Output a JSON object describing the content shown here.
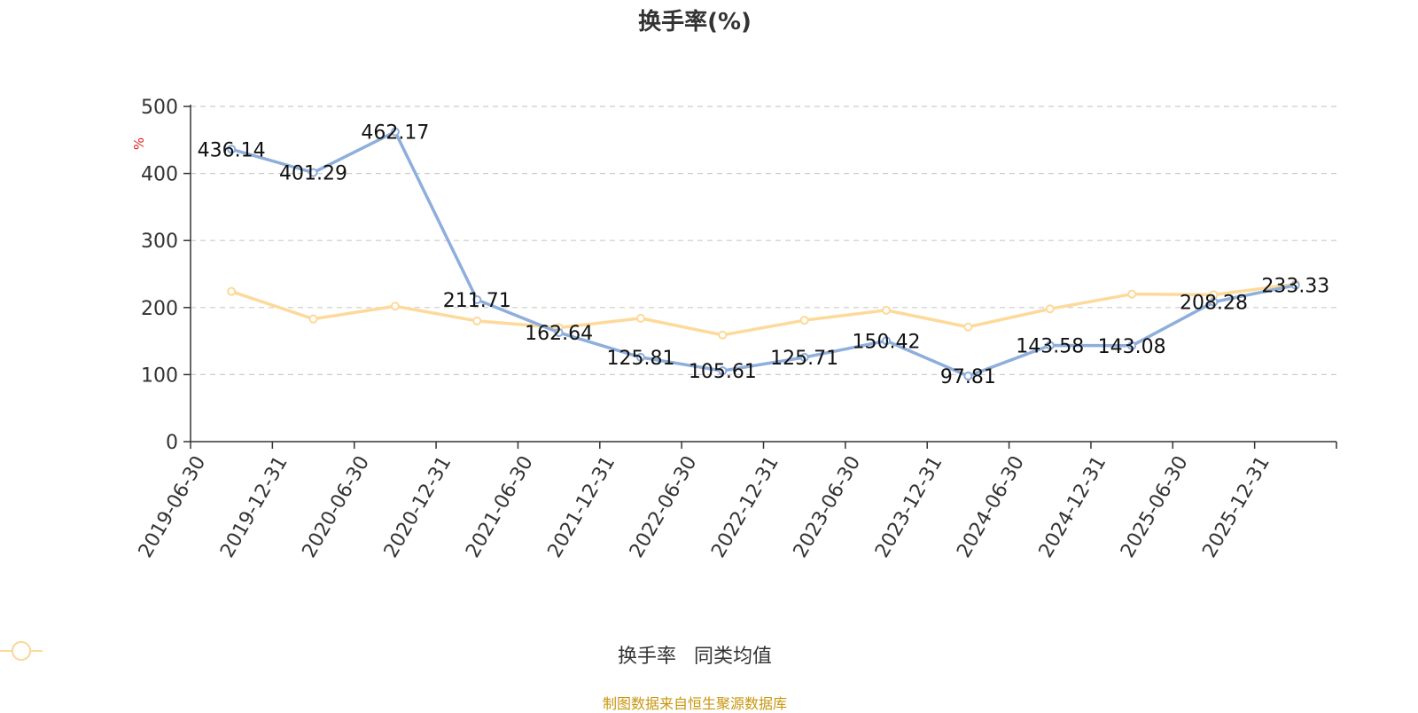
{
  "chart_data": {
    "type": "line",
    "title": "换手率(%)",
    "ylabel": "%",
    "xlabel": "",
    "ylim": [
      0,
      500
    ],
    "yticks": [
      "0",
      "100",
      "200",
      "300",
      "400",
      "500"
    ],
    "grid": true,
    "legend_position": "bottom-center",
    "categories": [
      "2019-06-30",
      "2019-12-31",
      "2020-06-30",
      "2020-12-31",
      "2021-06-30",
      "2021-12-31",
      "2022-06-30",
      "2022-12-31",
      "2023-06-30",
      "2023-12-31",
      "2024-06-30",
      "2024-12-31",
      "2025-06-30",
      "2025-12-31"
    ],
    "series": [
      {
        "name": "换手率",
        "color": "#8eaedb",
        "labels": true,
        "values": [
          436.14,
          401.29,
          462.17,
          211.71,
          162.64,
          125.81,
          105.61,
          125.71,
          150.42,
          97.81,
          143.58,
          143.08,
          208.28,
          233.33
        ],
        "label_texts": [
          "436.14",
          "401.29",
          "462.17",
          "211.71",
          "162.64",
          "125.81",
          "105.61",
          "125.71",
          "150.42",
          "97.81",
          "143.58",
          "143.08",
          "208.28",
          "233.33"
        ]
      },
      {
        "name": "同类均值",
        "color": "#fdd99a",
        "labels": false,
        "values": [
          224,
          183,
          202,
          180,
          170,
          184,
          159,
          181,
          196,
          171,
          198,
          220,
          219,
          235
        ]
      }
    ]
  },
  "footer": {
    "source": "制图数据来自恒生聚源数据库"
  }
}
